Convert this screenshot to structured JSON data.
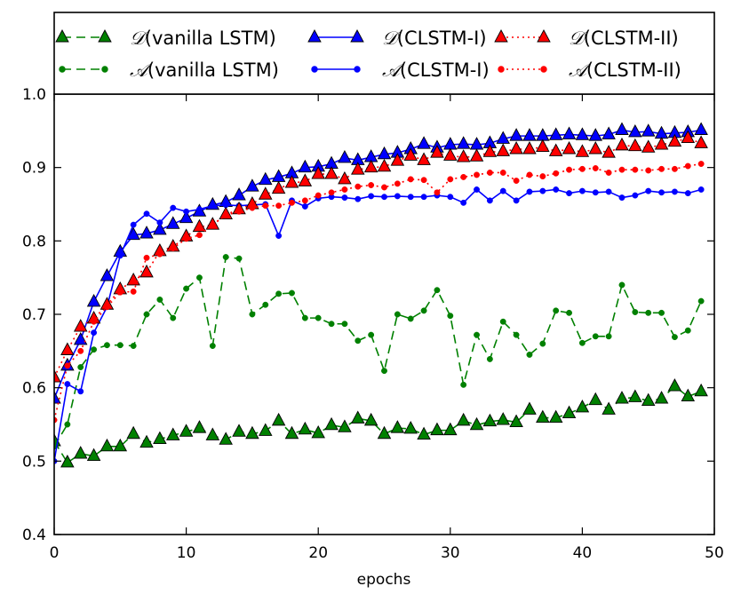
{
  "chart_data": {
    "type": "line",
    "title": "",
    "xlabel": "epochs",
    "ylabel": "",
    "xlim": [
      0,
      50
    ],
    "ylim": [
      0.4,
      1.0
    ],
    "xticks": [
      0,
      10,
      20,
      30,
      40,
      50
    ],
    "yticks": [
      0.4,
      0.5,
      0.6,
      0.7,
      0.8,
      0.9,
      1.0
    ],
    "xtick_labels": [
      "0",
      "10",
      "20",
      "30",
      "40",
      "50"
    ],
    "ytick_labels": [
      "0.4",
      "0.5",
      "0.6",
      "0.7",
      "0.8",
      "0.9",
      "1.0"
    ],
    "grid": false,
    "legend_position": "top",
    "x": [
      0,
      1,
      2,
      3,
      4,
      5,
      6,
      7,
      8,
      9,
      10,
      11,
      12,
      13,
      14,
      15,
      16,
      17,
      18,
      19,
      20,
      21,
      22,
      23,
      24,
      25,
      26,
      27,
      28,
      29,
      30,
      31,
      32,
      33,
      34,
      35,
      36,
      37,
      38,
      39,
      40,
      41,
      42,
      43,
      44,
      45,
      46,
      47,
      48,
      49
    ],
    "series": [
      {
        "name": "D(vanilla LSTM)",
        "symbol": "𝒟",
        "label": "(vanilla LSTM)",
        "color": "#008000",
        "linestyle": "dashed",
        "marker": "triangle",
        "values": [
          0.527,
          0.498,
          0.51,
          0.507,
          0.52,
          0.52,
          0.537,
          0.525,
          0.53,
          0.535,
          0.54,
          0.545,
          0.535,
          0.529,
          0.54,
          0.537,
          0.541,
          0.555,
          0.537,
          0.543,
          0.538,
          0.549,
          0.546,
          0.558,
          0.555,
          0.537,
          0.545,
          0.544,
          0.536,
          0.542,
          0.542,
          0.555,
          0.549,
          0.554,
          0.556,
          0.553,
          0.57,
          0.559,
          0.559,
          0.565,
          0.573,
          0.583,
          0.57,
          0.585,
          0.587,
          0.582,
          0.585,
          0.602,
          0.588,
          0.595
        ]
      },
      {
        "name": "A(vanilla LSTM)",
        "symbol": "𝒜",
        "label": "(vanilla LSTM)",
        "color": "#008000",
        "linestyle": "dashed",
        "marker": "dot",
        "values": [
          0.52,
          0.55,
          0.628,
          0.652,
          0.658,
          0.658,
          0.657,
          0.7,
          0.72,
          0.695,
          0.735,
          0.75,
          0.657,
          0.778,
          0.776,
          0.7,
          0.713,
          0.728,
          0.729,
          0.695,
          0.695,
          0.687,
          0.687,
          0.664,
          0.672,
          0.623,
          0.7,
          0.694,
          0.705,
          0.733,
          0.698,
          0.604,
          0.672,
          0.639,
          0.69,
          0.672,
          0.645,
          0.66,
          0.705,
          0.702,
          0.661,
          0.67,
          0.67,
          0.74,
          0.703,
          0.702,
          0.702,
          0.669,
          0.678,
          0.718
        ]
      },
      {
        "name": "D(CLSTM-I)",
        "symbol": "𝒟",
        "label": "(CLSTM-I)",
        "color": "#0000ff",
        "linestyle": "solid",
        "marker": "triangle",
        "values": [
          0.585,
          0.63,
          0.665,
          0.717,
          0.752,
          0.785,
          0.808,
          0.81,
          0.815,
          0.823,
          0.831,
          0.84,
          0.849,
          0.853,
          0.862,
          0.874,
          0.883,
          0.887,
          0.892,
          0.9,
          0.901,
          0.905,
          0.913,
          0.91,
          0.914,
          0.918,
          0.92,
          0.925,
          0.932,
          0.927,
          0.931,
          0.932,
          0.931,
          0.933,
          0.939,
          0.943,
          0.943,
          0.943,
          0.944,
          0.945,
          0.944,
          0.943,
          0.945,
          0.951,
          0.948,
          0.949,
          0.946,
          0.947,
          0.948,
          0.951
        ]
      },
      {
        "name": "A(CLSTM-I)",
        "symbol": "𝒜",
        "label": "(CLSTM-I)",
        "color": "#0000ff",
        "linestyle": "solid",
        "marker": "dot",
        "values": [
          0.5,
          0.605,
          0.595,
          0.675,
          0.71,
          0.78,
          0.822,
          0.837,
          0.825,
          0.845,
          0.84,
          0.843,
          0.848,
          0.849,
          0.848,
          0.849,
          0.85,
          0.807,
          0.855,
          0.847,
          0.858,
          0.86,
          0.859,
          0.857,
          0.861,
          0.86,
          0.861,
          0.86,
          0.86,
          0.862,
          0.86,
          0.852,
          0.87,
          0.855,
          0.868,
          0.855,
          0.867,
          0.868,
          0.87,
          0.865,
          0.868,
          0.866,
          0.867,
          0.859,
          0.862,
          0.868,
          0.866,
          0.867,
          0.865,
          0.87
        ]
      },
      {
        "name": "D(CLSTM-II)",
        "symbol": "𝒟",
        "label": "(CLSTM-II)",
        "color": "#ff0000",
        "linestyle": "dotted",
        "marker": "triangle",
        "values": [
          0.614,
          0.651,
          0.683,
          0.694,
          0.713,
          0.734,
          0.746,
          0.757,
          0.786,
          0.792,
          0.806,
          0.819,
          0.822,
          0.836,
          0.843,
          0.85,
          0.863,
          0.871,
          0.879,
          0.881,
          0.891,
          0.891,
          0.884,
          0.897,
          0.9,
          0.901,
          0.909,
          0.916,
          0.91,
          0.92,
          0.916,
          0.914,
          0.915,
          0.921,
          0.922,
          0.925,
          0.925,
          0.928,
          0.922,
          0.925,
          0.921,
          0.925,
          0.92,
          0.93,
          0.929,
          0.927,
          0.931,
          0.935,
          0.94,
          0.933
        ]
      },
      {
        "name": "A(CLSTM-II)",
        "symbol": "𝒜",
        "label": "(CLSTM-II)",
        "color": "#ff0000",
        "linestyle": "dotted",
        "marker": "dot",
        "values": [
          0.556,
          0.63,
          0.65,
          0.69,
          0.71,
          0.73,
          0.731,
          0.777,
          0.782,
          0.79,
          0.803,
          0.808,
          0.822,
          0.835,
          0.84,
          0.845,
          0.848,
          0.848,
          0.852,
          0.855,
          0.862,
          0.866,
          0.87,
          0.874,
          0.876,
          0.873,
          0.878,
          0.884,
          0.883,
          0.866,
          0.884,
          0.887,
          0.89,
          0.893,
          0.893,
          0.882,
          0.89,
          0.888,
          0.892,
          0.897,
          0.898,
          0.899,
          0.893,
          0.897,
          0.897,
          0.896,
          0.898,
          0.898,
          0.902,
          0.905
        ]
      }
    ]
  }
}
